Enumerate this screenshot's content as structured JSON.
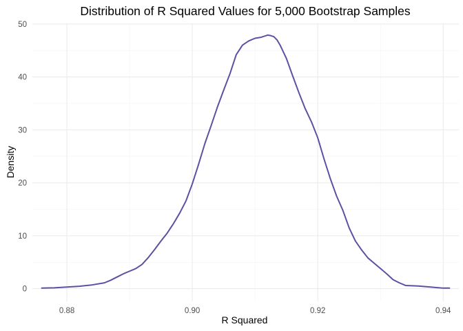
{
  "chart_data": {
    "type": "line",
    "title": "Distribution of R Squared Values for 5,000 Bootstrap Samples",
    "xlabel": "R Squared",
    "ylabel": "Density",
    "xlim": [
      0.8745,
      0.9425
    ],
    "ylim": [
      -2.4,
      50.1
    ],
    "x_ticks": [
      0.88,
      0.9,
      0.92,
      0.94
    ],
    "x_tick_labels": [
      "0.88",
      "0.90",
      "0.92",
      "0.94"
    ],
    "y_ticks": [
      0,
      10,
      20,
      30,
      40,
      50
    ],
    "y_tick_labels": [
      "0",
      "10",
      "20",
      "30",
      "40",
      "50"
    ],
    "grid": true,
    "legend": "none",
    "line_color": "#5e4fa2",
    "series": [
      {
        "x": [
          0.876,
          0.878,
          0.88,
          0.882,
          0.884,
          0.886,
          0.887,
          0.888,
          0.889,
          0.89,
          0.891,
          0.892,
          0.893,
          0.894,
          0.895,
          0.896,
          0.897,
          0.898,
          0.899,
          0.9,
          0.901,
          0.902,
          0.903,
          0.904,
          0.905,
          0.906,
          0.907,
          0.908,
          0.909,
          0.91,
          0.911,
          0.912,
          0.9125,
          0.913,
          0.9135,
          0.914,
          0.915,
          0.916,
          0.917,
          0.918,
          0.919,
          0.92,
          0.921,
          0.922,
          0.923,
          0.924,
          0.925,
          0.926,
          0.927,
          0.928,
          0.929,
          0.93,
          0.931,
          0.932,
          0.933,
          0.934,
          0.936,
          0.938,
          0.94,
          0.941
        ],
        "y": [
          0.1,
          0.15,
          0.3,
          0.45,
          0.7,
          1.1,
          1.6,
          2.2,
          2.8,
          3.3,
          3.8,
          4.6,
          5.9,
          7.4,
          9.0,
          10.5,
          12.3,
          14.3,
          16.6,
          19.8,
          23.5,
          27.4,
          30.8,
          34.3,
          37.5,
          40.6,
          44.2,
          46.0,
          46.8,
          47.3,
          47.5,
          47.9,
          47.8,
          47.6,
          47.0,
          46.0,
          43.5,
          40.2,
          37.0,
          34.0,
          31.5,
          28.5,
          24.5,
          20.8,
          17.5,
          14.8,
          11.5,
          9.0,
          7.3,
          5.8,
          4.8,
          3.8,
          2.8,
          1.7,
          1.1,
          0.6,
          0.5,
          0.3,
          0.1,
          0.1
        ]
      }
    ]
  }
}
